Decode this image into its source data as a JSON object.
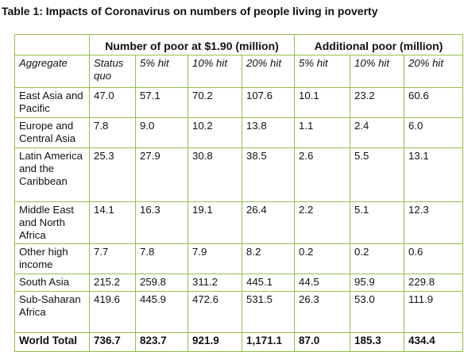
{
  "caption": "Table 1: Impacts of Coronavirus on numbers of people living in poverty",
  "groups": {
    "poor": "Number of poor at $1.90 (million)",
    "additional": "Additional poor (million)"
  },
  "columns": [
    "Aggregate",
    "Status quo",
    "5% hit",
    "10% hit",
    "20% hit",
    "5% hit",
    "10% hit",
    "20% hit"
  ],
  "rows": [
    {
      "label": "East Asia and Pacific",
      "values": [
        "47.0",
        "57.1",
        "70.2",
        "107.6",
        "10.1",
        "23.2",
        "60.6"
      ]
    },
    {
      "label": "Europe and Central Asia",
      "values": [
        "7.8",
        "9.0",
        "10.2",
        "13.8",
        "1.1",
        "2.4",
        "6.0"
      ]
    },
    {
      "label": "Latin America and the Caribbean",
      "values": [
        "25.3",
        "27.9",
        "30.8",
        "38.5",
        "2.6",
        "5.5",
        "13.1"
      ]
    },
    {
      "label": "Middle East and North Africa",
      "values": [
        "14.1",
        "16.3",
        "19.1",
        "26.4",
        "2.2",
        "5.1",
        "12.3"
      ]
    },
    {
      "label": "Other high income",
      "values": [
        "7.7",
        "7.8",
        "7.9",
        "8.2",
        "0.2",
        "0.2",
        "0.6"
      ]
    },
    {
      "label": "South Asia",
      "values": [
        "215.2",
        "259.8",
        "311.2",
        "445.1",
        "44.5",
        "95.9",
        "229.8"
      ]
    },
    {
      "label": "Sub-Saharan Africa",
      "values": [
        "419.6",
        "445.9",
        "472.6",
        "531.5",
        "26.3",
        "53.0",
        "111.9"
      ]
    }
  ],
  "total": {
    "label": "World Total",
    "values": [
      "736.7",
      "823.7",
      "921.9",
      "1,171.1",
      "87.0",
      "185.3",
      "434.4"
    ]
  },
  "colors": {
    "border": "#97bf4a"
  }
}
